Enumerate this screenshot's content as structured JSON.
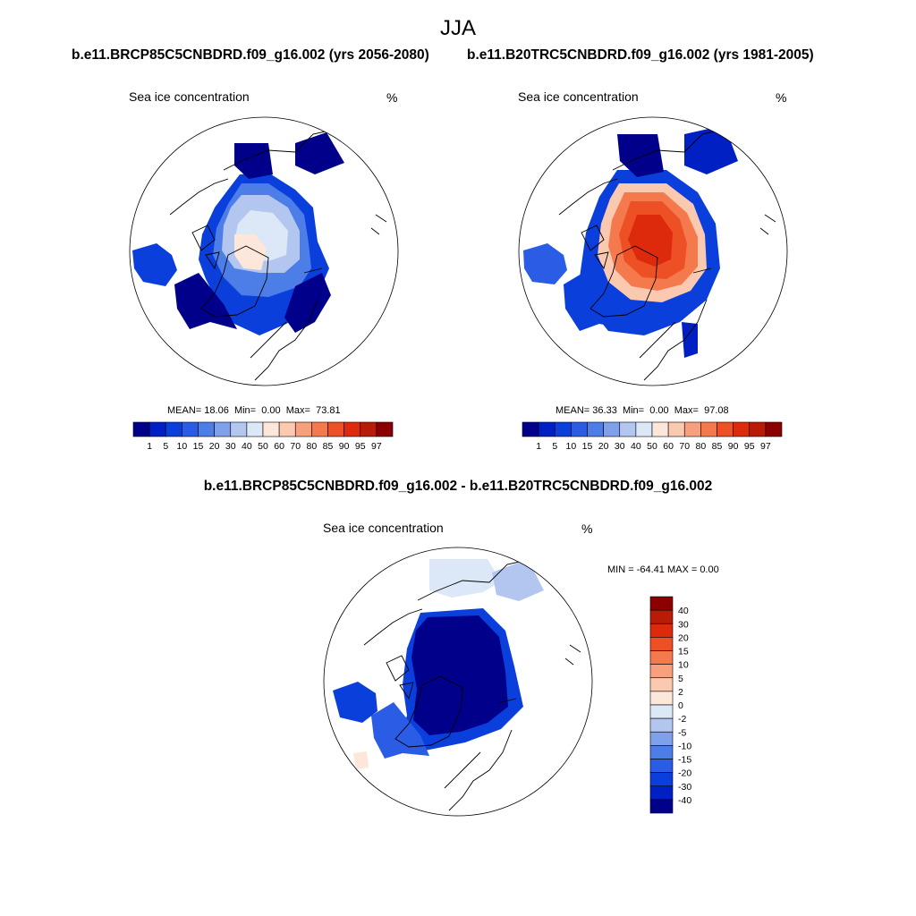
{
  "page": {
    "title": "JJA",
    "top_left_title": "b.e11.BRCP85C5CNBDRD.f09_g16.002 (yrs 2056-2080)",
    "top_right_title": "b.e11.B20TRC5CNBDRD.f09_g16.002 (yrs 1981-2005)",
    "bottom_title": "b.e11.BRCP85C5CNBDRD.f09_g16.002 - b.e11.B20TRC5CNBDRD.f09_g16.002"
  },
  "colors": {
    "seq": [
      "#00008b",
      "#0020c4",
      "#0a3fdc",
      "#2a5ce6",
      "#4d7ee8",
      "#7fa0ea",
      "#b3c6f0",
      "#dce7f8",
      "#fde6da",
      "#fbc8b0",
      "#f8a07e",
      "#f47a4e",
      "#ee5026",
      "#dd2a0c",
      "#b91c06",
      "#8b0000"
    ],
    "coast": "#000000"
  },
  "chart_data": [
    {
      "type": "heatmap",
      "panel": "top-left",
      "title": "Sea ice concentration",
      "units": "%",
      "stats": {
        "mean_label": "MEAN=",
        "mean": "18.06",
        "min_label": "Min=",
        "min": "0.00",
        "max_label": "Max=",
        "max": "73.81"
      },
      "colorbar_levels": [
        "1",
        "5",
        "10",
        "15",
        "20",
        "30",
        "40",
        "50",
        "60",
        "70",
        "80",
        "85",
        "90",
        "95",
        "97"
      ],
      "colorbar_orientation": "horizontal"
    },
    {
      "type": "heatmap",
      "panel": "top-right",
      "title": "Sea ice concentration",
      "units": "%",
      "stats": {
        "mean_label": "MEAN=",
        "mean": "36.33",
        "min_label": "Min=",
        "min": "0.00",
        "max_label": "Max=",
        "max": "97.08"
      },
      "colorbar_levels": [
        "1",
        "5",
        "10",
        "15",
        "20",
        "30",
        "40",
        "50",
        "60",
        "70",
        "80",
        "85",
        "90",
        "95",
        "97"
      ],
      "colorbar_orientation": "horizontal"
    },
    {
      "type": "heatmap",
      "panel": "bottom-difference",
      "title": "Sea ice concentration",
      "units": "%",
      "stats_text": "MIN = -64.41 MAX =   0.00",
      "colorbar_levels": [
        "40",
        "30",
        "20",
        "15",
        "10",
        "5",
        "2",
        "0",
        "-2",
        "-5",
        "-10",
        "-15",
        "-20",
        "-30",
        "-40"
      ],
      "colorbar_orientation": "vertical"
    }
  ]
}
